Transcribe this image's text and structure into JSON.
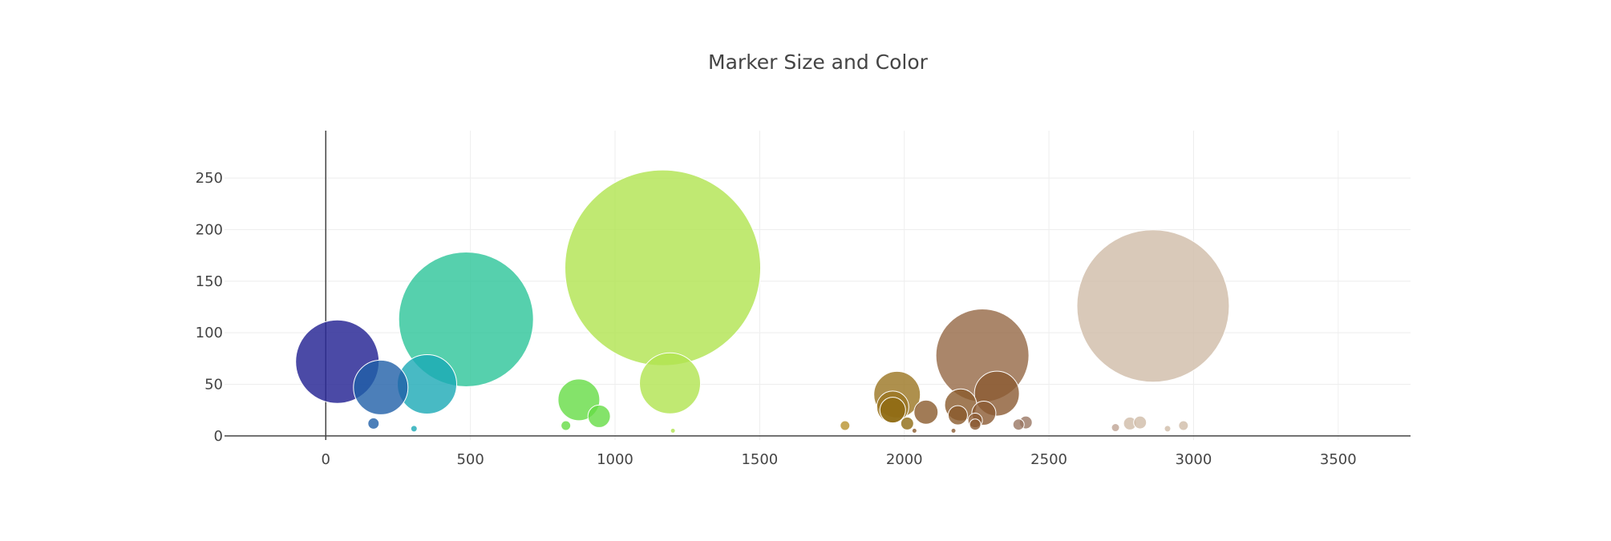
{
  "chart_data": {
    "type": "scatter",
    "title": "Marker Size and Color",
    "xlabel": "",
    "ylabel": "",
    "xlim": [
      -350,
      3750
    ],
    "ylim": [
      -4,
      296
    ],
    "xticks": [
      0,
      500,
      1000,
      1500,
      2000,
      2500,
      3000,
      3500
    ],
    "xtick_labels": [
      "0",
      "500",
      "1000",
      "1500",
      "2000",
      "2500",
      "3000",
      "3500"
    ],
    "yticks": [
      0,
      50,
      100,
      150,
      200,
      250
    ],
    "ytick_labels": [
      "0",
      "50",
      "100",
      "150",
      "200",
      "250"
    ],
    "grid": true,
    "points": [
      {
        "x": 40,
        "y": 72,
        "r": 52,
        "color": "#2c2a96",
        "opacity": 0.85
      },
      {
        "x": 190,
        "y": 47,
        "r": 34,
        "color": "#1f5fa8",
        "opacity": 0.8
      },
      {
        "x": 165,
        "y": 12,
        "r": 7,
        "color": "#1f5fa8",
        "opacity": 0.8
      },
      {
        "x": 350,
        "y": 50,
        "r": 37,
        "color": "#1aa9b5",
        "opacity": 0.8
      },
      {
        "x": 305,
        "y": 7,
        "r": 4,
        "color": "#1aa9b5",
        "opacity": 0.8
      },
      {
        "x": 485,
        "y": 113,
        "r": 84,
        "color": "#2cc499",
        "opacity": 0.8
      },
      {
        "x": 875,
        "y": 35,
        "r": 26,
        "color": "#65dc45",
        "opacity": 0.8
      },
      {
        "x": 945,
        "y": 19,
        "r": 14,
        "color": "#65dc45",
        "opacity": 0.8
      },
      {
        "x": 830,
        "y": 10,
        "r": 6,
        "color": "#65dc45",
        "opacity": 0.8
      },
      {
        "x": 1165,
        "y": 163,
        "r": 122,
        "color": "#b0e34f",
        "opacity": 0.8
      },
      {
        "x": 1190,
        "y": 51,
        "r": 38,
        "color": "#b0e34f",
        "opacity": 0.8
      },
      {
        "x": 1200,
        "y": 5,
        "r": 3,
        "color": "#b0e34f",
        "opacity": 0.8
      },
      {
        "x": 1795,
        "y": 10,
        "r": 6,
        "color": "#b8922e",
        "opacity": 0.8
      },
      {
        "x": 1975,
        "y": 40,
        "r": 29,
        "color": "#9a7420",
        "opacity": 0.8
      },
      {
        "x": 1960,
        "y": 28,
        "r": 20,
        "color": "#9a7420",
        "opacity": 0.8
      },
      {
        "x": 1960,
        "y": 25,
        "r": 16,
        "color": "#8f6a12",
        "opacity": 0.8
      },
      {
        "x": 2010,
        "y": 12,
        "r": 8,
        "color": "#8f6a12",
        "opacity": 0.8
      },
      {
        "x": 2075,
        "y": 23,
        "r": 15,
        "color": "#8a5a2c",
        "opacity": 0.8
      },
      {
        "x": 2035,
        "y": 5,
        "r": 3,
        "color": "#8a5a2c",
        "opacity": 0.8
      },
      {
        "x": 2195,
        "y": 30,
        "r": 20,
        "color": "#8a5a2c",
        "opacity": 0.8
      },
      {
        "x": 2185,
        "y": 20,
        "r": 12,
        "color": "#8a5a2c",
        "opacity": 0.8
      },
      {
        "x": 2270,
        "y": 78,
        "r": 58,
        "color": "#956845",
        "opacity": 0.8
      },
      {
        "x": 2320,
        "y": 41,
        "r": 28,
        "color": "#8b5a32",
        "opacity": 0.8
      },
      {
        "x": 2275,
        "y": 22,
        "r": 15,
        "color": "#8b5a32",
        "opacity": 0.8
      },
      {
        "x": 2245,
        "y": 15,
        "r": 9,
        "color": "#8b5a32",
        "opacity": 0.8
      },
      {
        "x": 2245,
        "y": 11,
        "r": 7,
        "color": "#8b5a32",
        "opacity": 0.8
      },
      {
        "x": 2170,
        "y": 5,
        "r": 3,
        "color": "#8b5a32",
        "opacity": 0.8
      },
      {
        "x": 2420,
        "y": 13,
        "r": 8,
        "color": "#9a7763",
        "opacity": 0.8
      },
      {
        "x": 2395,
        "y": 11,
        "r": 7,
        "color": "#9a7763",
        "opacity": 0.8
      },
      {
        "x": 2860,
        "y": 126,
        "r": 95,
        "color": "#cfbba7",
        "opacity": 0.8
      },
      {
        "x": 2780,
        "y": 12,
        "r": 8,
        "color": "#cfbba7",
        "opacity": 0.8
      },
      {
        "x": 2815,
        "y": 13,
        "r": 8,
        "color": "#cfbba7",
        "opacity": 0.8
      },
      {
        "x": 2730,
        "y": 8,
        "r": 5,
        "color": "#bfa493",
        "opacity": 0.8
      },
      {
        "x": 2965,
        "y": 10,
        "r": 6,
        "color": "#cfbba7",
        "opacity": 0.8
      },
      {
        "x": 2910,
        "y": 7,
        "r": 4,
        "color": "#cfbba7",
        "opacity": 0.8
      }
    ]
  }
}
